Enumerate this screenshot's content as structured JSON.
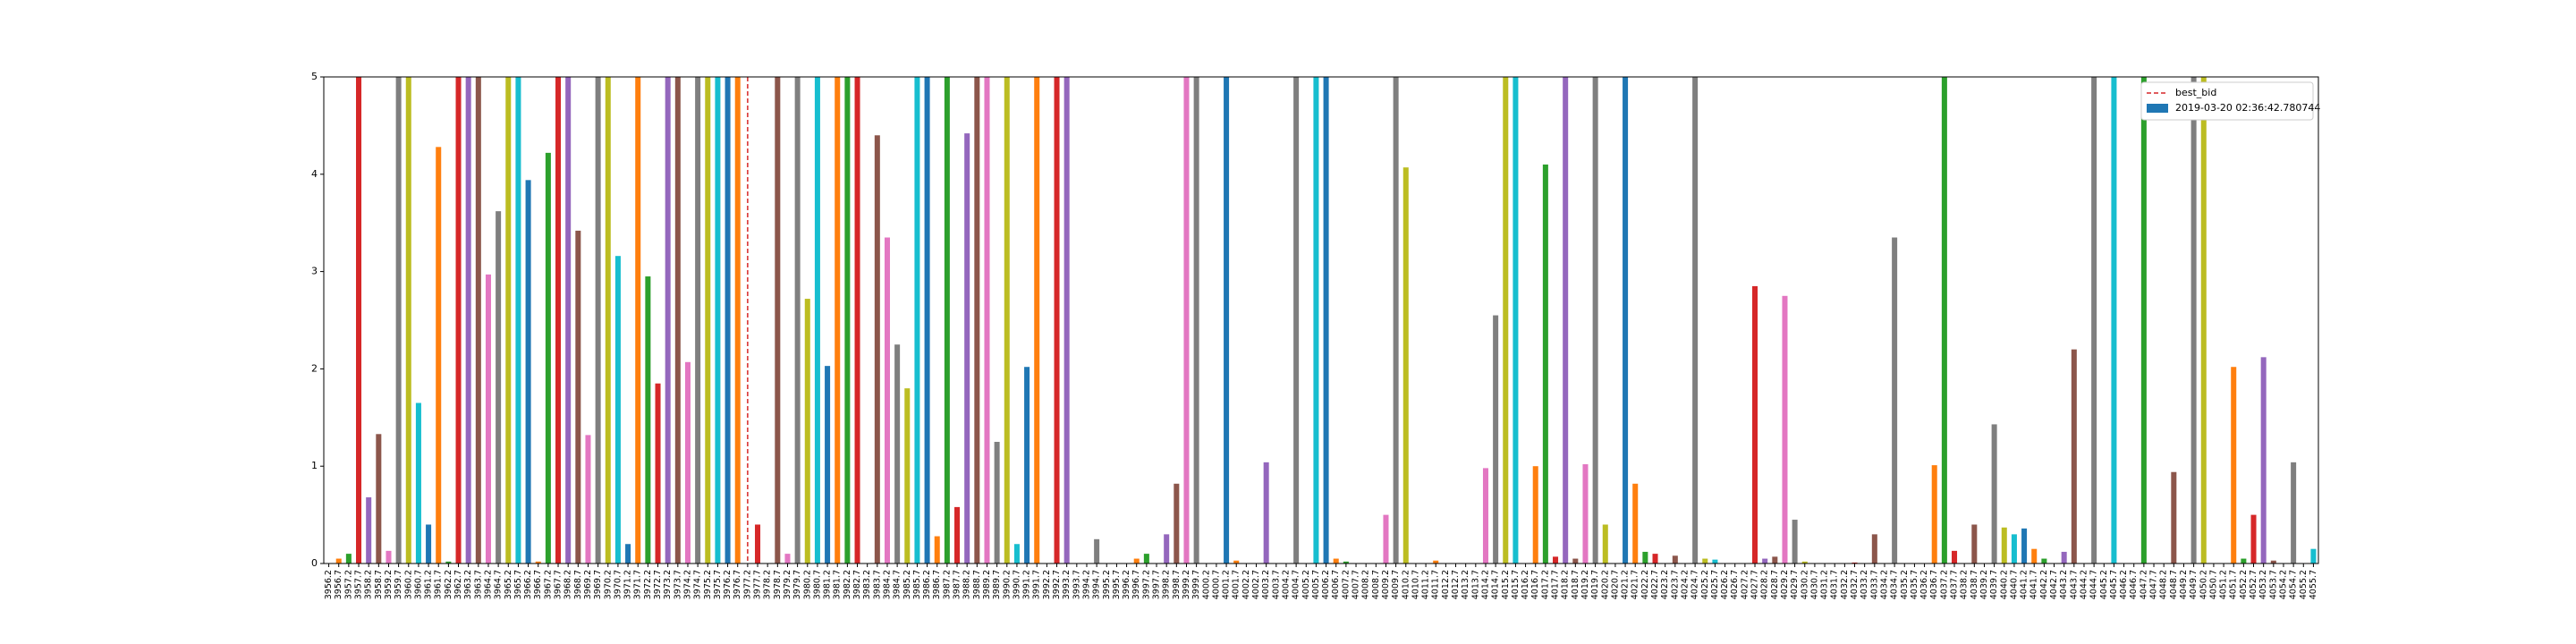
{
  "chart_data": {
    "type": "bar",
    "categories": [
      "3956.2",
      "3956.7",
      "3957.2",
      "3957.7",
      "3958.2",
      "3958.7",
      "3959.2",
      "3959.7",
      "3960.2",
      "3960.7",
      "3961.2",
      "3961.7",
      "3962.2",
      "3962.7",
      "3963.2",
      "3963.7",
      "3964.2",
      "3964.7",
      "3965.2",
      "3965.7",
      "3966.2",
      "3966.7",
      "3967.2",
      "3967.7",
      "3968.2",
      "3968.7",
      "3969.2",
      "3969.7",
      "3970.2",
      "3970.7",
      "3971.2",
      "3971.7",
      "3972.2",
      "3972.7",
      "3973.2",
      "3973.7",
      "3974.2",
      "3974.7",
      "3975.2",
      "3975.7",
      "3976.2",
      "3976.7",
      "3977.2",
      "3977.7",
      "3978.2",
      "3978.7",
      "3979.2",
      "3979.7",
      "3980.2",
      "3980.7",
      "3981.2",
      "3981.7",
      "3982.2",
      "3982.7",
      "3983.2",
      "3983.7",
      "3984.2",
      "3984.7",
      "3985.2",
      "3985.7",
      "3986.2",
      "3986.7",
      "3987.2",
      "3987.7",
      "3988.2",
      "3988.7",
      "3989.2",
      "3989.7",
      "3990.2",
      "3990.7",
      "3991.2",
      "3991.7",
      "3992.2",
      "3992.7",
      "3993.2",
      "3993.7",
      "3994.2",
      "3994.7",
      "3995.2",
      "3995.7",
      "3996.2",
      "3996.7",
      "3997.2",
      "3997.7",
      "3998.2",
      "3998.7",
      "3999.2",
      "3999.7",
      "4000.2",
      "4000.7",
      "4001.2",
      "4001.7",
      "4002.2",
      "4002.7",
      "4003.2",
      "4003.7",
      "4004.2",
      "4004.7",
      "4005.2",
      "4005.7",
      "4006.2",
      "4006.7",
      "4007.2",
      "4007.7",
      "4008.2",
      "4008.7",
      "4009.2",
      "4009.7",
      "4010.2",
      "4010.7",
      "4011.2",
      "4011.7",
      "4012.2",
      "4012.7",
      "4013.2",
      "4013.7",
      "4014.2",
      "4014.7",
      "4015.2",
      "4015.7",
      "4016.2",
      "4016.7",
      "4017.2",
      "4017.7",
      "4018.2",
      "4018.7",
      "4019.2",
      "4019.7",
      "4020.2",
      "4020.7",
      "4021.2",
      "4021.7",
      "4022.2",
      "4022.7",
      "4023.2",
      "4023.7",
      "4024.2",
      "4024.7",
      "4025.2",
      "4025.7",
      "4026.2",
      "4026.7",
      "4027.2",
      "4027.7",
      "4028.2",
      "4028.7",
      "4029.2",
      "4029.7",
      "4030.2",
      "4030.7",
      "4031.2",
      "4031.7",
      "4032.2",
      "4032.7",
      "4033.2",
      "4033.7",
      "4034.2",
      "4034.7",
      "4035.2",
      "4035.7",
      "4036.2",
      "4036.7",
      "4037.2",
      "4037.7",
      "4038.2",
      "4038.7",
      "4039.2",
      "4039.7",
      "4040.2",
      "4040.7",
      "4041.2",
      "4041.7",
      "4042.2",
      "4042.7",
      "4043.2",
      "4043.7",
      "4044.2",
      "4044.7",
      "4045.2",
      "4045.7",
      "4046.2",
      "4046.7",
      "4047.2",
      "4047.7",
      "4048.2",
      "4048.7",
      "4049.2",
      "4049.7",
      "4050.2",
      "4050.7",
      "4051.2",
      "4051.7",
      "4052.2",
      "4052.7",
      "4053.2",
      "4053.7",
      "4054.2",
      "4054.7",
      "4055.2",
      "4055.7"
    ],
    "series": [
      {
        "name": "2019-03-20 02:36:42.780744",
        "color": "#1f77b4",
        "colors": [
          "#1f77b4",
          "#ff7f0e",
          "#2ca02c",
          "#d62728",
          "#9467bd",
          "#8c564b",
          "#e377c2",
          "#7f7f7f",
          "#bcbd22",
          "#17becf"
        ],
        "values": [
          0,
          0.05,
          0.1,
          5,
          0.68,
          1.33,
          0.13,
          5,
          5,
          1.65,
          0.4,
          4.28,
          0.02,
          5,
          5,
          5,
          2.97,
          3.62,
          5,
          5,
          3.94,
          0.02,
          4.22,
          5,
          5,
          3.42,
          1.32,
          5,
          5,
          3.16,
          0.2,
          5,
          2.95,
          1.85,
          5,
          5,
          2.07,
          5,
          5,
          5,
          5,
          5,
          0,
          0.4,
          0,
          5,
          0.1,
          5,
          2.72,
          5,
          2.03,
          5,
          5,
          5,
          0,
          4.4,
          3.35,
          2.25,
          1.8,
          5,
          5,
          0.28,
          5,
          0.58,
          4.42,
          5,
          5,
          1.25,
          5,
          0.2,
          2.02,
          5,
          0,
          5,
          5,
          0,
          0,
          0.25,
          0,
          0,
          0,
          0.05,
          0.1,
          0,
          0.3,
          0.82,
          5,
          5,
          0,
          0,
          5,
          0.03,
          0,
          0,
          1.04,
          0,
          0,
          5,
          0,
          5,
          5,
          0.05,
          0.02,
          0,
          0,
          0,
          0.5,
          5,
          4.07,
          0,
          0,
          0.03,
          0,
          0,
          0,
          0,
          0.98,
          2.55,
          5,
          5,
          0,
          1.0,
          4.1,
          0.07,
          5,
          0.05,
          1.02,
          5,
          0.4,
          0,
          5,
          0.82,
          0.12,
          0.1,
          0,
          0.08,
          0,
          5,
          0.05,
          0.04,
          0,
          0,
          0,
          2.85,
          0.05,
          0.07,
          2.75,
          0.45,
          0.02,
          0,
          0,
          0,
          0,
          0.01,
          0,
          0.3,
          0,
          3.35,
          0,
          0,
          0,
          1.01,
          5,
          0.13,
          0,
          0.4,
          0,
          1.43,
          0.37,
          0.3,
          0.36,
          0.15,
          0.05,
          0,
          0.12,
          2.2,
          0,
          5,
          0,
          5,
          0,
          0,
          5,
          0,
          0,
          0.94,
          0,
          5,
          5,
          0,
          0,
          2.02,
          0.05,
          0.5,
          2.12,
          0.03,
          0,
          1.04,
          0,
          0.15
        ]
      }
    ],
    "lines": [
      {
        "name": "best_bid",
        "x": "3977.2",
        "color": "#d62728"
      }
    ],
    "ylim": [
      0,
      5
    ],
    "yticks": [
      0,
      1,
      2,
      3,
      4,
      5
    ],
    "grid": false,
    "legend": "upper right"
  }
}
